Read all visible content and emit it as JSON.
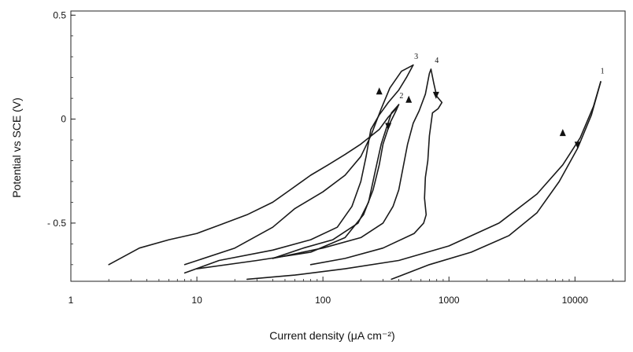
{
  "chart_data": {
    "type": "line",
    "xlabel": "Current density (μA cm⁻²)",
    "ylabel": "Potential vs SCE (V)",
    "x_scale": "log",
    "xlim": [
      1,
      25000
    ],
    "ylim": [
      -0.78,
      0.52
    ],
    "x_ticks": [
      {
        "value": 1,
        "label": "1"
      },
      {
        "value": 10,
        "label": "10"
      },
      {
        "value": 100,
        "label": "100"
      },
      {
        "value": 1000,
        "label": "1000"
      },
      {
        "value": 10000,
        "label": "10000"
      }
    ],
    "y_ticks": [
      {
        "value": 0.5,
        "label": "0.5"
      },
      {
        "value": 0,
        "label": "0"
      },
      {
        "value": -0.5,
        "label": "- 0.5"
      }
    ],
    "grid": false,
    "series": [
      {
        "name": "1",
        "forward": [
          [
            25,
            -0.77
          ],
          [
            60,
            -0.75
          ],
          [
            150,
            -0.72
          ],
          [
            400,
            -0.68
          ],
          [
            1000,
            -0.61
          ],
          [
            2500,
            -0.5
          ],
          [
            5000,
            -0.36
          ],
          [
            8000,
            -0.22
          ],
          [
            11000,
            -0.09
          ],
          [
            14000,
            0.06
          ],
          [
            16000,
            0.18
          ]
        ],
        "reverse": [
          [
            16000,
            0.18
          ],
          [
            13500,
            0.02
          ],
          [
            10500,
            -0.14
          ],
          [
            7500,
            -0.3
          ],
          [
            5000,
            -0.45
          ],
          [
            3000,
            -0.56
          ],
          [
            1500,
            -0.64
          ],
          [
            700,
            -0.7
          ],
          [
            350,
            -0.77
          ]
        ],
        "arrows": [
          {
            "at": [
              8000,
              -0.07
            ],
            "dir": "up"
          },
          {
            "at": [
              10500,
              -0.12
            ],
            "dir": "down"
          }
        ]
      },
      {
        "name": "2",
        "forward": [
          [
            10,
            -0.72
          ],
          [
            30,
            -0.68
          ],
          [
            80,
            -0.64
          ],
          [
            150,
            -0.57
          ],
          [
            210,
            -0.46
          ],
          [
            250,
            -0.34
          ],
          [
            280,
            -0.22
          ],
          [
            300,
            -0.12
          ],
          [
            340,
            -0.02
          ],
          [
            380,
            0.04
          ],
          [
            400,
            0.07
          ]
        ],
        "reverse": [
          [
            400,
            0.07
          ],
          [
            350,
            0.03
          ],
          [
            320,
            -0.04
          ],
          [
            290,
            -0.12
          ],
          [
            260,
            -0.25
          ],
          [
            230,
            -0.4
          ],
          [
            190,
            -0.5
          ],
          [
            120,
            -0.58
          ],
          [
            70,
            -0.62
          ],
          [
            40,
            -0.67
          ]
        ],
        "arrows": [
          {
            "at": [
              330,
              -0.03
            ],
            "dir": "down"
          }
        ]
      },
      {
        "name": "3",
        "forward": [
          [
            8,
            -0.7
          ],
          [
            20,
            -0.62
          ],
          [
            40,
            -0.52
          ],
          [
            60,
            -0.43
          ],
          [
            100,
            -0.35
          ],
          [
            150,
            -0.27
          ],
          [
            200,
            -0.18
          ],
          [
            240,
            -0.08
          ],
          [
            290,
            0.05
          ],
          [
            340,
            0.15
          ],
          [
            420,
            0.23
          ],
          [
            520,
            0.26
          ]
        ],
        "reverse": [
          [
            520,
            0.26
          ],
          [
            460,
            0.2
          ],
          [
            400,
            0.14
          ],
          [
            330,
            0.08
          ],
          [
            280,
            0.02
          ],
          [
            240,
            -0.05
          ],
          [
            220,
            -0.18
          ],
          [
            200,
            -0.3
          ],
          [
            170,
            -0.42
          ],
          [
            130,
            -0.52
          ],
          [
            80,
            -0.58
          ],
          [
            40,
            -0.63
          ],
          [
            15,
            -0.68
          ],
          [
            8,
            -0.74
          ]
        ],
        "arrows": [
          {
            "at": [
              280,
              0.13
            ],
            "dir": "up"
          }
        ]
      },
      {
        "name": "4",
        "forward": [
          [
            40,
            -0.67
          ],
          [
            100,
            -0.62
          ],
          [
            200,
            -0.57
          ],
          [
            300,
            -0.5
          ],
          [
            360,
            -0.42
          ],
          [
            400,
            -0.34
          ],
          [
            430,
            -0.24
          ],
          [
            470,
            -0.12
          ],
          [
            520,
            -0.02
          ],
          [
            580,
            0.04
          ],
          [
            650,
            0.12
          ],
          [
            700,
            0.22
          ],
          [
            720,
            0.24
          ]
        ],
        "reverse": [
          [
            720,
            0.24
          ],
          [
            760,
            0.17
          ],
          [
            800,
            0.11
          ],
          [
            880,
            0.08
          ],
          [
            820,
            0.05
          ],
          [
            740,
            0.03
          ],
          [
            700,
            -0.08
          ],
          [
            680,
            -0.2
          ],
          [
            650,
            -0.28
          ],
          [
            640,
            -0.38
          ],
          [
            660,
            -0.46
          ],
          [
            630,
            -0.5
          ],
          [
            530,
            -0.55
          ],
          [
            300,
            -0.62
          ],
          [
            150,
            -0.67
          ],
          [
            80,
            -0.7
          ]
        ],
        "arrows": [
          {
            "at": [
              480,
              0.09
            ],
            "dir": "up"
          },
          {
            "at": [
              790,
              0.12
            ],
            "dir": "down"
          }
        ]
      },
      {
        "name": "",
        "forward": [
          [
            2,
            -0.7
          ],
          [
            3.5,
            -0.62
          ],
          [
            6,
            -0.58
          ],
          [
            10,
            -0.55
          ],
          [
            15,
            -0.51
          ],
          [
            25,
            -0.46
          ],
          [
            40,
            -0.4
          ],
          [
            55,
            -0.34
          ],
          [
            80,
            -0.27
          ],
          [
            110,
            -0.22
          ],
          [
            150,
            -0.17
          ],
          [
            200,
            -0.12
          ],
          [
            280,
            -0.05
          ],
          [
            330,
            0.01
          ],
          [
            380,
            0.05
          ]
        ],
        "reverse": [],
        "arrows": []
      }
    ],
    "curve_labels": [
      {
        "text": "1",
        "x": 16500,
        "y": 0.22
      },
      {
        "text": "2",
        "x": 420,
        "y": 0.1
      },
      {
        "text": "3",
        "x": 550,
        "y": 0.29
      },
      {
        "text": "4",
        "x": 800,
        "y": 0.27
      }
    ]
  }
}
